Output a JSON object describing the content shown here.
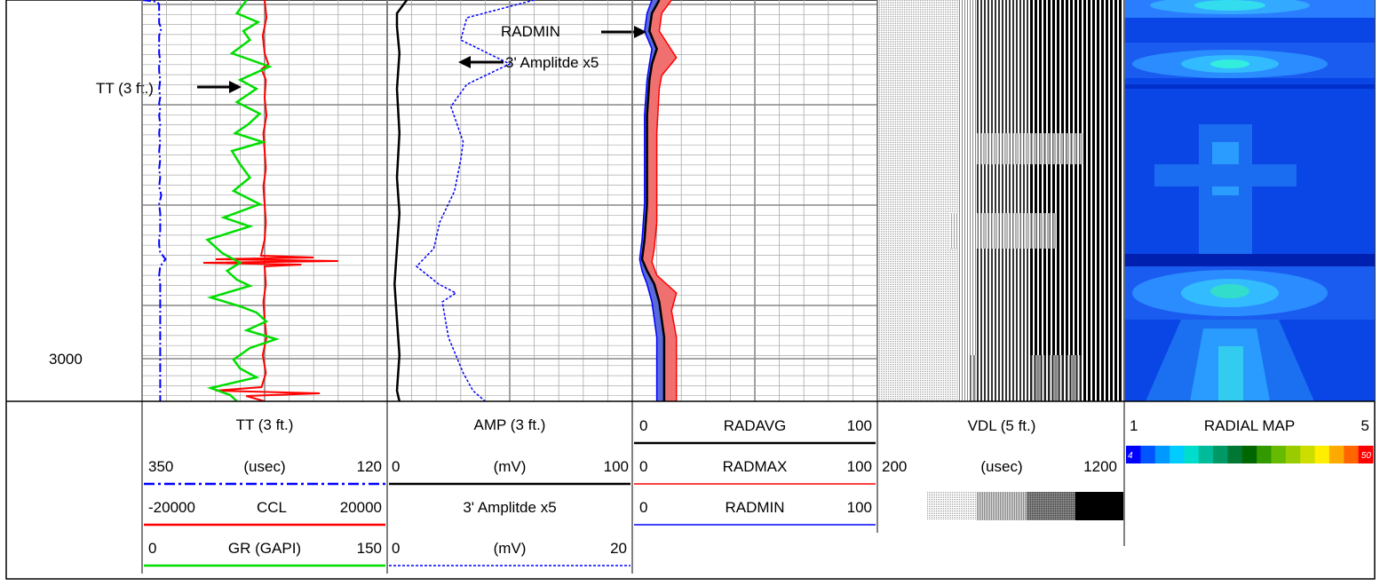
{
  "chart_data": {
    "type": "line",
    "title": "",
    "depth_label": "3000",
    "colors": {
      "tt": "#0000ff",
      "ccl": "#ff0000",
      "gr": "#00dd00",
      "amp": "#000000",
      "amp5": "#0000ff",
      "radavg": "#000000",
      "radmax": "#ff0000",
      "radmin": "#0000ff",
      "radmax_fill": "#f07070",
      "radmin_fill": "#5a6ad8",
      "grid_major": "#888888",
      "grid_minor": "#aaaaaa"
    },
    "annotations": {
      "tt": "TT (3 ft.)",
      "radmin": "RADMIN",
      "amp5": "3' Amplitde x5"
    },
    "tracks": {
      "track1": {
        "tt": {
          "name": "TT (3 ft.)",
          "unit": "(usec)",
          "min": "350",
          "max": "120",
          "vmin": 350,
          "vmax": 120,
          "points": [
            [
              350,
              0
            ],
            [
              336,
              2
            ],
            [
              334,
              5
            ],
            [
              334,
              10
            ],
            [
              334,
              14
            ],
            [
              334,
              20
            ],
            [
              334,
              26
            ],
            [
              332,
              32
            ],
            [
              334,
              40
            ],
            [
              334,
              46
            ],
            [
              334,
              52
            ],
            [
              334,
              60
            ],
            [
              333,
              68
            ],
            [
              334,
              74
            ],
            [
              334,
              80
            ],
            [
              333,
              90
            ],
            [
              334,
              100
            ],
            [
              333,
              110
            ],
            [
              334,
              116
            ],
            [
              333,
              124
            ],
            [
              334,
              130
            ],
            [
              333,
              140
            ],
            [
              334,
              150
            ],
            [
              333,
              160
            ],
            [
              334,
              170
            ],
            [
              333,
              180
            ],
            [
              334,
              190
            ],
            [
              333,
              200
            ],
            [
              334,
              210
            ],
            [
              332,
              220
            ],
            [
              334,
              230
            ],
            [
              333,
              240
            ],
            [
              333,
              250
            ],
            [
              333,
              260
            ],
            [
              334,
              270
            ],
            [
              334,
              276
            ],
            [
              333,
              284
            ],
            [
              328,
              292
            ],
            [
              333,
              300
            ],
            [
              334,
              310
            ],
            [
              333,
              320
            ],
            [
              333,
              330
            ],
            [
              333,
              340
            ],
            [
              333,
              350
            ],
            [
              333,
              360
            ],
            [
              333,
              370
            ],
            [
              333,
              380
            ],
            [
              333,
              390
            ],
            [
              333,
              400
            ],
            [
              333,
              410
            ],
            [
              333,
              420
            ],
            [
              333,
              430
            ],
            [
              333,
              440
            ],
            [
              333,
              452
            ]
          ]
        },
        "ccl": {
          "name": "CCL",
          "min": "-20000",
          "max": "20000",
          "vmin": -20000,
          "vmax": 20000,
          "points": [
            [
              0,
              0
            ],
            [
              300,
              20
            ],
            [
              -300,
              40
            ],
            [
              0,
              60
            ],
            [
              600,
              72
            ],
            [
              -500,
              78
            ],
            [
              200,
              90
            ],
            [
              0,
              110
            ],
            [
              300,
              130
            ],
            [
              -200,
              150
            ],
            [
              0,
              170
            ],
            [
              200,
              190
            ],
            [
              -200,
              210
            ],
            [
              0,
              230
            ],
            [
              200,
              250
            ],
            [
              0,
              270
            ],
            [
              -600,
              288
            ],
            [
              8000,
              290
            ],
            [
              -8000,
              292
            ],
            [
              12000,
              294
            ],
            [
              -10000,
              296
            ],
            [
              6000,
              298
            ],
            [
              0,
              300
            ],
            [
              200,
              320
            ],
            [
              -200,
              340
            ],
            [
              0,
              360
            ],
            [
              300,
              380
            ],
            [
              -300,
              400
            ],
            [
              200,
              420
            ],
            [
              -500,
              436
            ],
            [
              -8000,
              440
            ],
            [
              9000,
              443
            ],
            [
              -3000,
              446
            ],
            [
              0,
              452
            ]
          ]
        },
        "gr": {
          "name": "GR (GAPI)",
          "min": "0",
          "max": "150",
          "vmin": 0,
          "vmax": 150,
          "points": [
            [
              64,
              0
            ],
            [
              58,
              15
            ],
            [
              71,
              25
            ],
            [
              62,
              35
            ],
            [
              66,
              45
            ],
            [
              55,
              60
            ],
            [
              78,
              75
            ],
            [
              60,
              90
            ],
            [
              70,
              100
            ],
            [
              58,
              115
            ],
            [
              72,
              128
            ],
            [
              65,
              140
            ],
            [
              57,
              150
            ],
            [
              74,
              160
            ],
            [
              55,
              170
            ],
            [
              60,
              185
            ],
            [
              66,
              200
            ],
            [
              56,
              215
            ],
            [
              72,
              230
            ],
            [
              50,
              245
            ],
            [
              66,
              255
            ],
            [
              40,
              270
            ],
            [
              49,
              285
            ],
            [
              60,
              296
            ],
            [
              52,
              305
            ],
            [
              58,
              315
            ],
            [
              66,
              322
            ],
            [
              42,
              335
            ],
            [
              60,
              345
            ],
            [
              70,
              352
            ],
            [
              76,
              362
            ],
            [
              64,
              372
            ],
            [
              82,
              382
            ],
            [
              66,
              392
            ],
            [
              56,
              405
            ],
            [
              60,
              415
            ],
            [
              70,
              425
            ],
            [
              42,
              437
            ],
            [
              54,
              445
            ],
            [
              58,
              452
            ]
          ]
        }
      },
      "track2": {
        "amp": {
          "name": "AMP (3 ft.)",
          "unit": "(mV)",
          "min": "0",
          "max": "100",
          "vmin": 0,
          "vmax": 100,
          "points": [
            [
              8,
              0
            ],
            [
              4,
              15
            ],
            [
              4,
              30
            ],
            [
              5,
              60
            ],
            [
              4,
              100
            ],
            [
              5,
              150
            ],
            [
              4,
              200
            ],
            [
              5,
              240
            ],
            [
              4,
              280
            ],
            [
              3,
              320
            ],
            [
              4,
              360
            ],
            [
              5,
              400
            ],
            [
              4,
              440
            ],
            [
              5,
              452
            ]
          ]
        },
        "amp5": {
          "name": "3' Amplitde x5",
          "unit": "(mV)",
          "min": "0",
          "max": "20",
          "vmin": 0,
          "vmax": 20,
          "points": [
            [
              12,
              0
            ],
            [
              6.5,
              20
            ],
            [
              6,
              45
            ],
            [
              10,
              72
            ],
            [
              6.5,
              95
            ],
            [
              5.2,
              120
            ],
            [
              6.2,
              160
            ],
            [
              6,
              180
            ],
            [
              5.5,
              215
            ],
            [
              4.3,
              250
            ],
            [
              3.8,
              280
            ],
            [
              2.4,
              300
            ],
            [
              4.2,
              320
            ],
            [
              5.6,
              330
            ],
            [
              4.5,
              340
            ],
            [
              5.0,
              380
            ],
            [
              6.2,
              420
            ],
            [
              7,
              440
            ],
            [
              8,
              452
            ]
          ]
        }
      },
      "track3": {
        "radavg": {
          "name": "RADAVG",
          "min": "0",
          "max": "100",
          "vmin": 0,
          "vmax": 100,
          "points": [
            [
              11,
              0
            ],
            [
              8,
              15
            ],
            [
              7,
              35
            ],
            [
              10,
              55
            ],
            [
              8,
              72
            ],
            [
              7,
              90
            ],
            [
              6,
              130
            ],
            [
              6,
              180
            ],
            [
              6,
              230
            ],
            [
              5,
              270
            ],
            [
              4,
              292
            ],
            [
              6,
              305
            ],
            [
              9,
              320
            ],
            [
              11,
              340
            ],
            [
              13,
              380
            ],
            [
              13,
              420
            ],
            [
              13,
              452
            ]
          ]
        },
        "radmax": {
          "name": "RADMAX",
          "min": "0",
          "max": "100",
          "vmin": 0,
          "vmax": 100,
          "points": [
            [
              16,
              0
            ],
            [
              12,
              15
            ],
            [
              11,
              35
            ],
            [
              18,
              65
            ],
            [
              12,
              85
            ],
            [
              11,
              100
            ],
            [
              10,
              150
            ],
            [
              10,
              200
            ],
            [
              10,
              250
            ],
            [
              9,
              280
            ],
            [
              8,
              295
            ],
            [
              10,
              310
            ],
            [
              18,
              330
            ],
            [
              16,
              350
            ],
            [
              18,
              380
            ],
            [
              18,
              420
            ],
            [
              18,
              452
            ]
          ]
        },
        "radmin": {
          "name": "RADMIN",
          "min": "0",
          "max": "100",
          "vmin": 0,
          "vmax": 100,
          "points": [
            [
              8,
              0
            ],
            [
              6,
              15
            ],
            [
              5,
              35
            ],
            [
              8,
              55
            ],
            [
              7,
              72
            ],
            [
              6,
              90
            ],
            [
              5,
              130
            ],
            [
              5,
              180
            ],
            [
              5,
              230
            ],
            [
              4,
              270
            ],
            [
              3,
              292
            ],
            [
              4,
              305
            ],
            [
              6,
              320
            ],
            [
              8,
              340
            ],
            [
              10,
              380
            ],
            [
              10,
              420
            ],
            [
              10,
              452
            ]
          ]
        }
      },
      "track4": {
        "name": "VDL (5 ft.)",
        "unit": "(usec)",
        "min": "200",
        "max": "1200",
        "grey_levels": [
          "#cccccc",
          "#aaaaaa",
          "#777777",
          "#000000"
        ]
      },
      "track5": {
        "name": "RADIAL MAP",
        "min": "1",
        "max": "5",
        "scale_min": "4",
        "scale_max": "50",
        "scale_colors": [
          "#0000ff",
          "#0055ff",
          "#0099ff",
          "#00ccff",
          "#00ddcc",
          "#00bb99",
          "#009966",
          "#007733",
          "#006600",
          "#339900",
          "#66bb00",
          "#99cc00",
          "#ccdd00",
          "#ffee00",
          "#ffaa00",
          "#ff6600",
          "#ff0000"
        ]
      }
    }
  }
}
